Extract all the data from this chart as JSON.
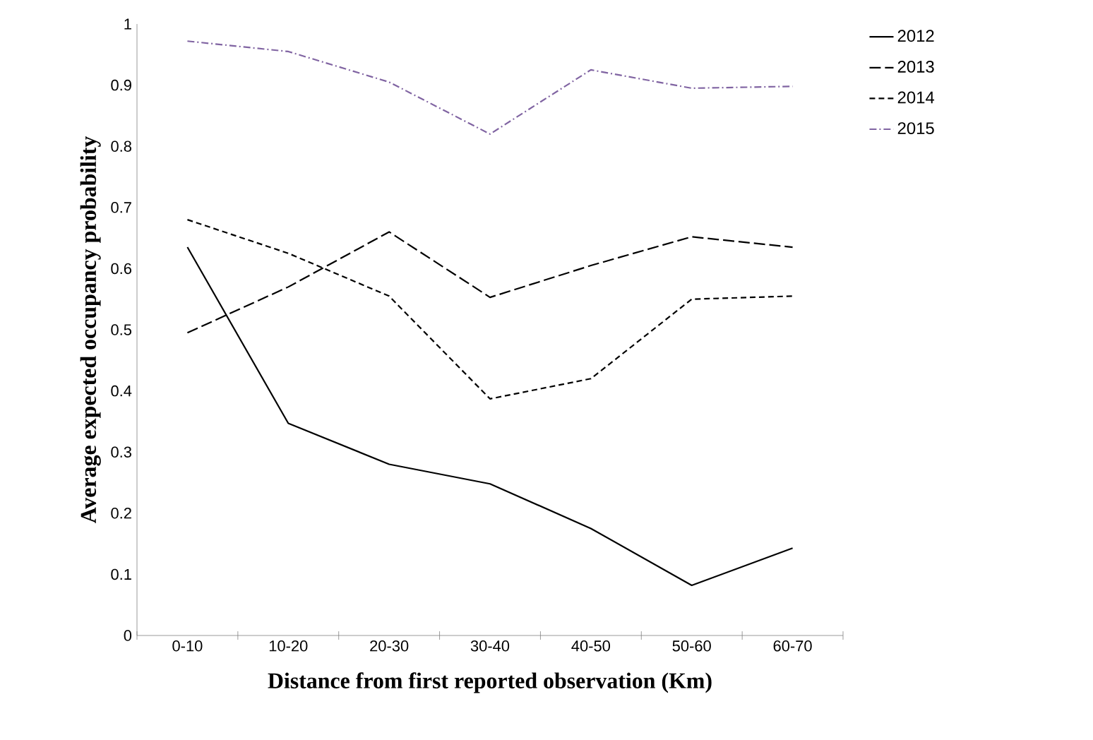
{
  "chart_data": {
    "type": "line",
    "xlabel": "Distance from first reported observation (Km)",
    "ylabel": "Average expected occupancy probability",
    "categories": [
      "0-10",
      "10-20",
      "20-30",
      "30-40",
      "40-50",
      "50-60",
      "60-70"
    ],
    "series": [
      {
        "name": "2012",
        "color": "#000000",
        "line_style": "solid",
        "values": [
          0.635,
          0.347,
          0.28,
          0.248,
          0.175,
          0.082,
          0.143
        ]
      },
      {
        "name": "2013",
        "color": "#000000",
        "line_style": "long dashed",
        "values": [
          0.495,
          0.57,
          0.66,
          0.553,
          0.605,
          0.652,
          0.635
        ]
      },
      {
        "name": "2014",
        "color": "#000000",
        "line_style": "dashed",
        "values": [
          0.68,
          0.625,
          0.555,
          0.387,
          0.42,
          0.55,
          0.555
        ]
      },
      {
        "name": "2015",
        "color": "#8064a2",
        "line_style": "dashdot",
        "values": [
          0.972,
          0.955,
          0.905,
          0.82,
          0.925,
          0.895,
          0.898
        ]
      }
    ],
    "ylim": [
      0,
      1
    ],
    "yticks": [
      0,
      0.1,
      0.2,
      0.3,
      0.4,
      0.5,
      0.6,
      0.7,
      0.8,
      0.9,
      1
    ],
    "grid": false,
    "legend": "right",
    "marker": "none"
  }
}
